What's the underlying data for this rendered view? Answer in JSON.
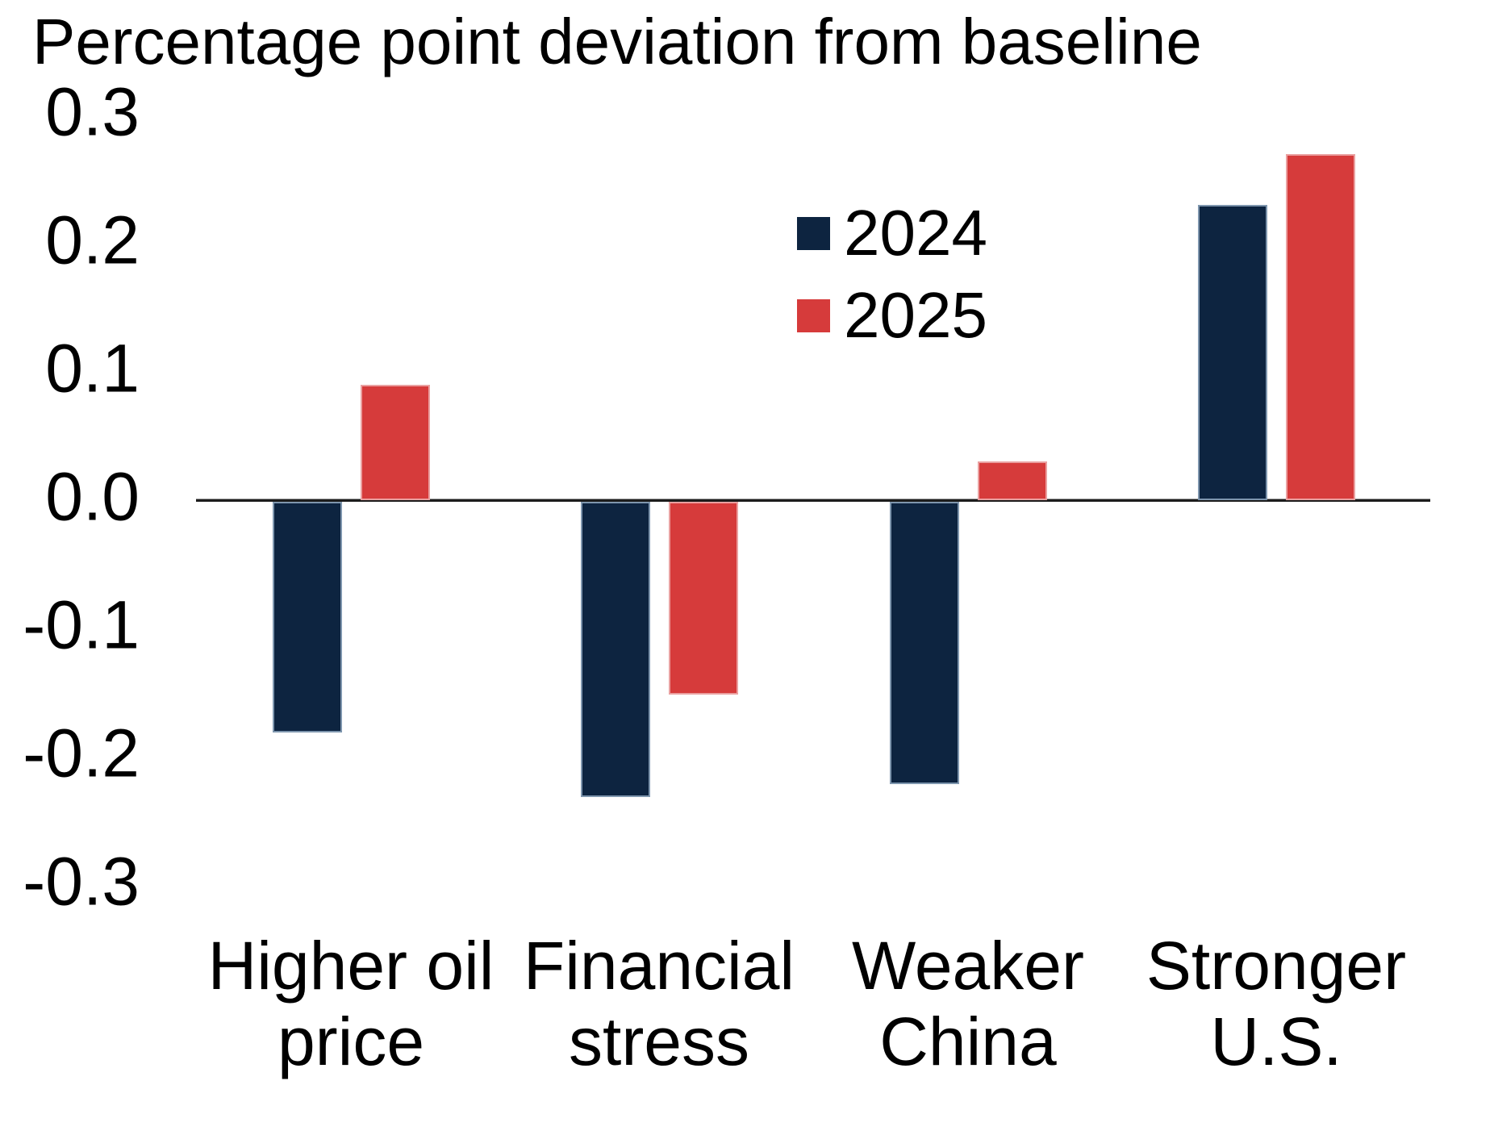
{
  "chart_data": {
    "type": "bar",
    "title": "Percentage point deviation from baseline",
    "categories": [
      "Higher oil price",
      "Financial stress",
      "Weaker China",
      "Stronger U.S."
    ],
    "category_label_lines": [
      [
        "Higher oil",
        "price"
      ],
      [
        "Financial",
        "stress"
      ],
      [
        "Weaker",
        "China"
      ],
      [
        "Stronger",
        "U.S."
      ]
    ],
    "series": [
      {
        "name": "2024",
        "color": "#0d2440",
        "values": [
          -0.18,
          -0.23,
          -0.22,
          0.23
        ]
      },
      {
        "name": "2025",
        "color": "#d63b3b",
        "values": [
          0.09,
          -0.15,
          0.03,
          0.27
        ]
      }
    ],
    "ylabel": "",
    "xlabel": "",
    "ylim": [
      -0.3,
      0.3
    ],
    "ytick_labels": [
      "0.3",
      "0.2",
      "0.1",
      "0.0",
      "-0.1",
      "-0.2",
      "-0.3"
    ],
    "ytick_values": [
      0.3,
      0.2,
      0.1,
      0.0,
      -0.1,
      -0.2,
      -0.3
    ],
    "grid": false,
    "legend_position": "upper-center-inside"
  }
}
